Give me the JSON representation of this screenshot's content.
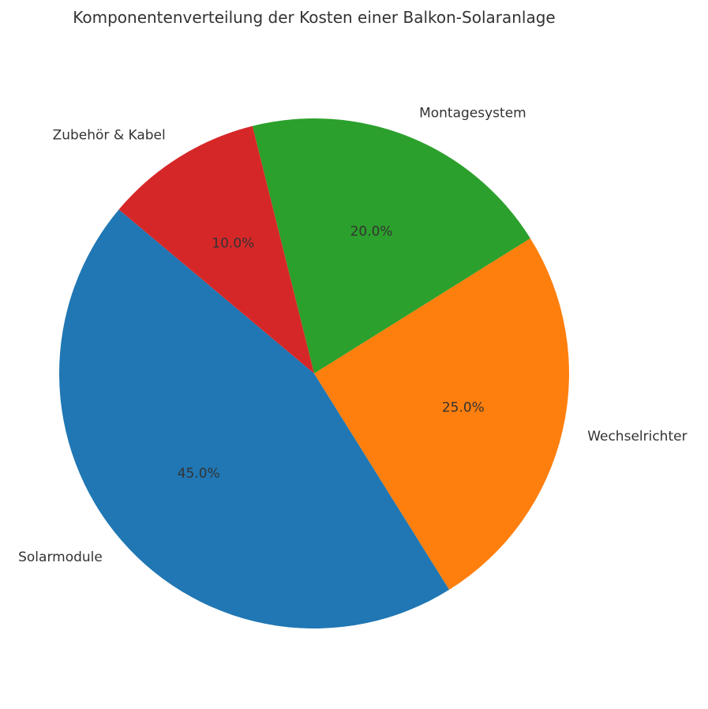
{
  "chart_data": {
    "type": "pie",
    "title": "Komponentenverteilung der Kosten einer Balkon-Solaranlage",
    "labels": [
      "Solarmodule",
      "Wechselrichter",
      "Montagesystem",
      "Zubehör & Kabel"
    ],
    "values": [
      45,
      25,
      20,
      10
    ],
    "percent_labels": [
      "45.0%",
      "25.0%",
      "20.0%",
      "10.0%"
    ],
    "colors": [
      "#2077b4",
      "#ff7f0e",
      "#2ca02c",
      "#d62728"
    ],
    "start_angle_deg": 140,
    "direction": "counterclockwise",
    "legend": "none"
  }
}
